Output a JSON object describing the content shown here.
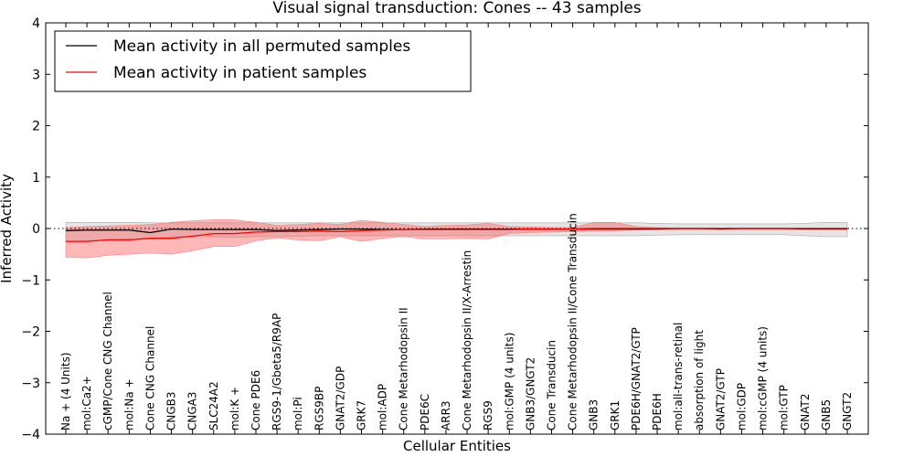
{
  "chart_data": {
    "type": "line",
    "title": "Visual signal transduction: Cones -- 43 samples",
    "xlabel": "Cellular Entities",
    "ylabel": "Inferred Activity",
    "ylim": [
      -4,
      4
    ],
    "yticks": [
      -4,
      -3,
      -2,
      -1,
      0,
      1,
      2,
      3,
      4
    ],
    "ytick_labels": [
      "−4",
      "−3",
      "−2",
      "−1",
      "0",
      "1",
      "2",
      "3",
      "4"
    ],
    "grid": false,
    "legend_position": "top-left",
    "reference_line": 0,
    "categories": [
      "Na + (4 Units)",
      "mol:Ca2+",
      "cGMP/Cone CNG Channel",
      "mol:Na +",
      "Cone CNG Channel",
      "CNGB3",
      "CNGA3",
      "SLC24A2",
      "mol:K +",
      "Cone PDE6",
      "RGS9-1/Gbeta5/R9AP",
      "mol:Pi",
      "RGS9BP",
      "GNAT2/GDP",
      "GRK7",
      "mol:ADP",
      "Cone Metarhodopsin II",
      "PDE6C",
      "ARR3",
      "Cone Metarhodopsin II/X-Arrestin",
      "RGS9",
      "mol:GMP (4 units)",
      "GNB3/GNGT2",
      "Cone Transducin",
      "Cone Metarhodopsin II/Cone Transducin",
      "GNB3",
      "GRK1",
      "PDE6H/GNAT2/GTP",
      "PDE6H",
      "mol:all-trans-retinal",
      "absorption of light",
      "GNAT2/GTP",
      "mol:GDP",
      "mol:cGMP (4 units)",
      "mol:GTP",
      "GNAT2",
      "GNB5",
      "GNGT2"
    ],
    "series": [
      {
        "name": "Mean activity in all permuted samples",
        "color": "#000000",
        "values": [
          -0.04,
          -0.03,
          -0.03,
          -0.03,
          -0.08,
          -0.01,
          -0.02,
          -0.02,
          -0.02,
          -0.02,
          -0.04,
          -0.03,
          -0.02,
          -0.01,
          -0.01,
          -0.02,
          -0.02,
          -0.01,
          -0.01,
          -0.01,
          -0.01,
          -0.01,
          -0.01,
          -0.01,
          -0.01,
          -0.01,
          -0.01,
          -0.01,
          -0.01,
          0.0,
          0.0,
          -0.01,
          0.0,
          0.0,
          0.0,
          -0.01,
          -0.01,
          -0.01
        ],
        "band_low": [
          -0.26,
          -0.24,
          -0.22,
          -0.21,
          -0.2,
          -0.16,
          -0.16,
          -0.16,
          -0.17,
          -0.16,
          -0.16,
          -0.15,
          -0.14,
          -0.14,
          -0.14,
          -0.14,
          -0.14,
          -0.14,
          -0.14,
          -0.14,
          -0.14,
          -0.14,
          -0.14,
          -0.14,
          -0.14,
          -0.14,
          -0.14,
          -0.14,
          -0.13,
          -0.12,
          -0.12,
          -0.12,
          -0.12,
          -0.12,
          -0.12,
          -0.14,
          -0.16,
          -0.16
        ],
        "band_high": [
          0.12,
          0.12,
          0.12,
          0.12,
          0.11,
          0.11,
          0.11,
          0.11,
          0.11,
          0.11,
          0.11,
          0.11,
          0.11,
          0.11,
          0.11,
          0.11,
          0.11,
          0.11,
          0.11,
          0.11,
          0.11,
          0.11,
          0.11,
          0.11,
          0.11,
          0.11,
          0.11,
          0.11,
          0.1,
          0.09,
          0.09,
          0.09,
          0.09,
          0.09,
          0.09,
          0.1,
          0.12,
          0.12
        ]
      },
      {
        "name": "Mean activity in patient samples",
        "color": "#ff0000",
        "values": [
          -0.25,
          -0.25,
          -0.22,
          -0.22,
          -0.19,
          -0.19,
          -0.15,
          -0.1,
          -0.1,
          -0.07,
          -0.06,
          -0.06,
          -0.05,
          -0.06,
          -0.04,
          -0.03,
          -0.02,
          -0.02,
          -0.02,
          -0.02,
          -0.02,
          -0.02,
          -0.01,
          -0.01,
          -0.01,
          0.0,
          0.0,
          0.0,
          0.0,
          0.0,
          0.0,
          0.0,
          0.0,
          0.0,
          0.0,
          0.0,
          0.0,
          0.0
        ],
        "band_low": [
          -0.56,
          -0.57,
          -0.52,
          -0.5,
          -0.48,
          -0.5,
          -0.43,
          -0.35,
          -0.35,
          -0.24,
          -0.18,
          -0.22,
          -0.24,
          -0.16,
          -0.25,
          -0.19,
          -0.16,
          -0.2,
          -0.2,
          -0.19,
          -0.2,
          -0.1,
          -0.08,
          -0.07,
          -0.06,
          -0.05,
          -0.04,
          -0.03,
          -0.02,
          -0.01,
          -0.01,
          -0.01,
          -0.01,
          -0.01,
          -0.01,
          -0.01,
          -0.01,
          -0.01
        ],
        "band_high": [
          0.02,
          0.04,
          0.05,
          0.06,
          0.08,
          0.12,
          0.15,
          0.17,
          0.17,
          0.12,
          0.06,
          0.08,
          0.1,
          0.08,
          0.16,
          0.12,
          0.08,
          0.04,
          0.06,
          0.07,
          0.1,
          0.04,
          0.03,
          0.02,
          0.02,
          0.12,
          0.12,
          0.04,
          0.02,
          0.01,
          0.01,
          0.01,
          0.01,
          0.01,
          0.01,
          0.01,
          0.01,
          0.01
        ]
      }
    ]
  }
}
